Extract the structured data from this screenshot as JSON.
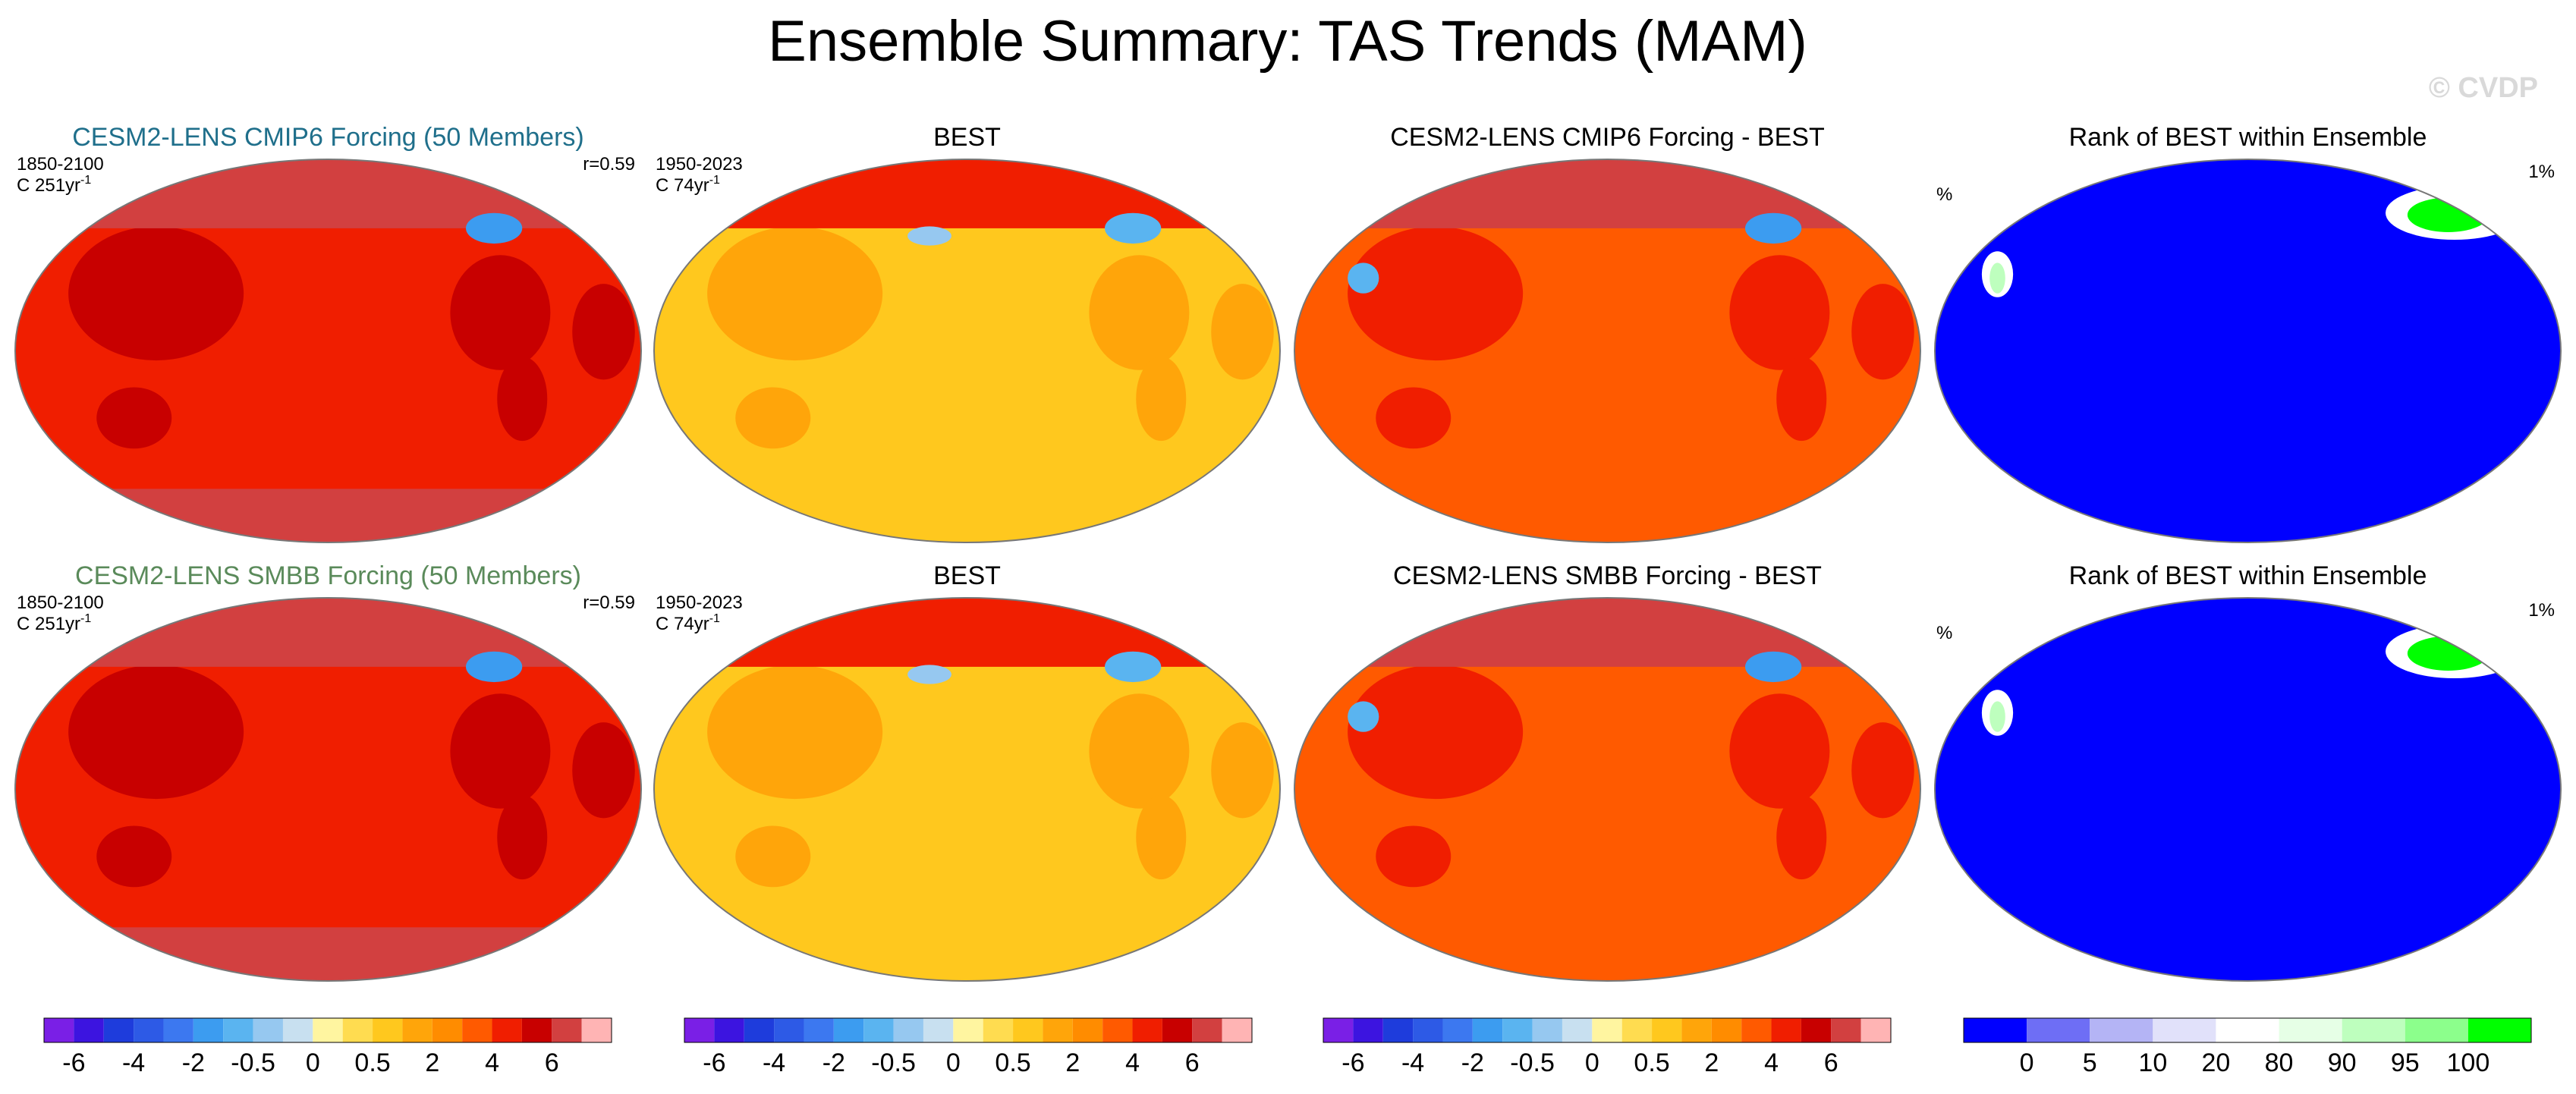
{
  "figure": {
    "title": "Ensemble Summary: TAS Trends (MAM)",
    "watermark": "© CVDP"
  },
  "chart_data": [
    {
      "type": "heatmap",
      "panel": "cesm2-cmip6-ensemble",
      "title": "CESM2-LENS CMIP6 Forcing (50 Members)",
      "title_color": "#1f6f8b",
      "period": "1850-2100",
      "units_label": "C 251yr",
      "units_exp": "-1",
      "corr": "r=0.59",
      "field": "model",
      "regional": {
        "arctic": 6.5,
        "antarctic": 6.5,
        "north_atlantic_hole": -2.0,
        "land": 5.0,
        "ocean": 4.0
      },
      "colorbar": "trend"
    },
    {
      "type": "heatmap",
      "panel": "best-obs-top",
      "title": "BEST",
      "period": "1950-2023",
      "units_label": "C 74yr",
      "units_exp": "-1",
      "field": "obs",
      "regional": {
        "arctic": 4.0,
        "north_atlantic_hole": -1.0,
        "north_pacific_hole": -0.5,
        "land": 1.5,
        "ocean": 0.75
      },
      "colorbar": "trend"
    },
    {
      "type": "heatmap",
      "panel": "cmip6-minus-best",
      "title": "CESM2-LENS CMIP6 Forcing - BEST",
      "field": "diff",
      "regional": {
        "arctic": 6.0,
        "north_atlantic_hole": -2.0,
        "east_asia_spot": -1.0,
        "land": 4.0,
        "ocean": 3.0
      },
      "colorbar": "trend"
    },
    {
      "type": "heatmap",
      "panel": "rank-best-cmip6",
      "title": "Rank of BEST within Ensemble",
      "left_label": "%",
      "right_label": "1%",
      "field": "rank",
      "regional": {
        "global": 0,
        "north_atlantic": 95,
        "himalaya": 90
      },
      "colorbar": "rank"
    },
    {
      "type": "heatmap",
      "panel": "cesm2-smbb-ensemble",
      "title": "CESM2-LENS SMBB Forcing (50 Members)",
      "title_color": "#5a8a5a",
      "period": "1850-2100",
      "units_label": "C 251yr",
      "units_exp": "-1",
      "corr": "r=0.59",
      "field": "model",
      "regional": {
        "arctic": 6.5,
        "antarctic": 6.5,
        "north_atlantic_hole": -2.0,
        "land": 5.0,
        "ocean": 4.0
      },
      "colorbar": "trend"
    },
    {
      "type": "heatmap",
      "panel": "best-obs-bottom",
      "title": "BEST",
      "period": "1950-2023",
      "units_label": "C 74yr",
      "units_exp": "-1",
      "field": "obs",
      "regional": {
        "arctic": 4.0,
        "north_atlantic_hole": -1.0,
        "north_pacific_hole": -0.5,
        "land": 1.5,
        "ocean": 0.75
      },
      "colorbar": "trend"
    },
    {
      "type": "heatmap",
      "panel": "smbb-minus-best",
      "title": "CESM2-LENS SMBB Forcing - BEST",
      "field": "diff",
      "regional": {
        "arctic": 6.0,
        "north_atlantic_hole": -2.0,
        "east_asia_spot": -1.0,
        "land": 4.0,
        "ocean": 3.0
      },
      "colorbar": "trend"
    },
    {
      "type": "heatmap",
      "panel": "rank-best-smbb",
      "title": "Rank of BEST within Ensemble",
      "left_label": "%",
      "right_label": "1%",
      "field": "rank",
      "regional": {
        "global": 0,
        "north_atlantic": 95,
        "himalaya": 90
      },
      "colorbar": "rank"
    }
  ],
  "colorbars": {
    "trend": {
      "colors": [
        "#7a1fe6",
        "#3c14e0",
        "#1e3cdc",
        "#2d5ae6",
        "#3c78f0",
        "#3c9cf0",
        "#5ab4f0",
        "#96c8f0",
        "#c8e0f0",
        "#fff5a0",
        "#ffdc50",
        "#ffc81e",
        "#ffa50a",
        "#ff8c00",
        "#ff5a00",
        "#f01e00",
        "#c80000",
        "#d24040",
        "#ffb4b4"
      ],
      "bounds": [
        -8,
        -6,
        -5,
        -4,
        -3,
        -2,
        -1,
        -0.5,
        -0.25,
        0,
        0.25,
        0.5,
        1,
        2,
        3,
        4,
        5,
        6,
        8
      ],
      "tick_labels": [
        "-6",
        "-4",
        "-2",
        "-0.5",
        "0",
        "0.5",
        "2",
        "4",
        "6"
      ],
      "tick_values": [
        -6,
        -4,
        -2,
        -0.5,
        0,
        0.5,
        2,
        4,
        6
      ]
    },
    "rank": {
      "colors": [
        "#0000ff",
        "#6e6ef5",
        "#b4b4f5",
        "#e1e1fa",
        "#ffffff",
        "#e6ffe6",
        "#beffbe",
        "#8cff8c",
        "#00ff00"
      ],
      "tick_labels": [
        "0",
        "5",
        "10",
        "20",
        "80",
        "90",
        "95",
        "100"
      ],
      "tick_boundaries": [
        1,
        2,
        3,
        4,
        5,
        6,
        7,
        8
      ]
    }
  }
}
